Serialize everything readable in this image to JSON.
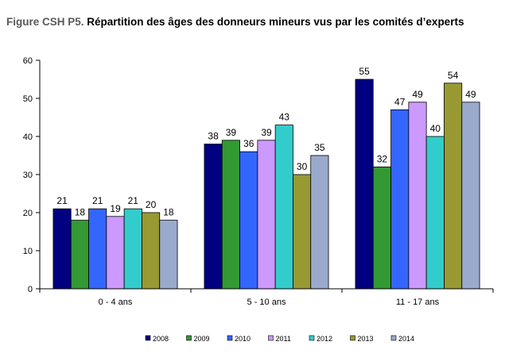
{
  "title_prefix": "Figure CSH P5.",
  "title_main": "Répartition des âges des donneurs mineurs vus par les comités d’experts",
  "chart_data": {
    "type": "bar",
    "title": "Figure CSH P5. Répartition des âges des donneurs mineurs vus par les comités d’experts",
    "xlabel": "",
    "ylabel": "",
    "categories": [
      "0 - 4 ans",
      "5 - 10 ans",
      "11 - 17 ans"
    ],
    "ylim": [
      0,
      60
    ],
    "yticks": [
      0,
      10,
      20,
      30,
      40,
      50,
      60
    ],
    "grid": false,
    "legend_position": "bottom",
    "series": [
      {
        "name": "2008",
        "color": "#000080",
        "values": [
          21,
          38,
          55
        ]
      },
      {
        "name": "2009",
        "color": "#339933",
        "values": [
          18,
          39,
          32
        ]
      },
      {
        "name": "2010",
        "color": "#3366FF",
        "values": [
          21,
          36,
          47
        ]
      },
      {
        "name": "2011",
        "color": "#CC99FF",
        "values": [
          19,
          39,
          49
        ]
      },
      {
        "name": "2012",
        "color": "#33CCCC",
        "values": [
          21,
          43,
          40
        ]
      },
      {
        "name": "2013",
        "color": "#999933",
        "values": [
          20,
          30,
          54
        ]
      },
      {
        "name": "2014",
        "color": "#99AACC",
        "values": [
          18,
          35,
          49
        ]
      }
    ]
  }
}
